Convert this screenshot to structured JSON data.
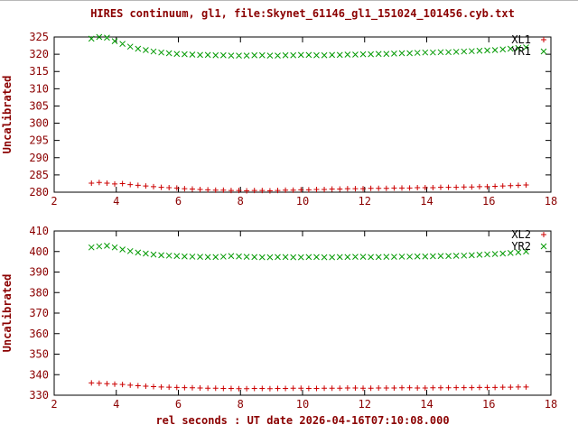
{
  "page": {
    "bg": "#ffffff",
    "text_color": "#8b0000",
    "legend_text_color": "#000000",
    "axis_color": "#000000"
  },
  "chart_data": [
    {
      "type": "scatter",
      "title": "HIRES continuum, gl1, file:Skynet_61146_gl1_151024_101456.cyb.txt",
      "xlabel": "",
      "ylabel": "Uncalibrated",
      "xlim": [
        2,
        18
      ],
      "ylim": [
        280,
        325
      ],
      "xtick": 2,
      "ytick": 5,
      "grid": false,
      "legend_position": "top-right-inside",
      "x": [
        3.2,
        3.45,
        3.7,
        3.95,
        4.2,
        4.45,
        4.7,
        4.95,
        5.2,
        5.45,
        5.7,
        5.95,
        6.2,
        6.45,
        6.7,
        6.95,
        7.2,
        7.45,
        7.7,
        7.95,
        8.2,
        8.45,
        8.7,
        8.95,
        9.2,
        9.45,
        9.7,
        9.95,
        10.2,
        10.45,
        10.7,
        10.95,
        11.2,
        11.45,
        11.7,
        11.95,
        12.2,
        12.45,
        12.7,
        12.95,
        13.2,
        13.45,
        13.7,
        13.95,
        14.2,
        14.45,
        14.7,
        14.95,
        15.2,
        15.45,
        15.7,
        15.95,
        16.2,
        16.45,
        16.7,
        16.95,
        17.2
      ],
      "series": [
        {
          "name": "XL1",
          "marker": "plus",
          "color": "#cc0000",
          "y": [
            282.6,
            282.8,
            282.6,
            282.4,
            282.5,
            282.2,
            282.0,
            281.8,
            281.6,
            281.4,
            281.3,
            281.2,
            281.0,
            280.9,
            280.8,
            280.7,
            280.6,
            280.6,
            280.5,
            280.5,
            280.4,
            280.5,
            280.5,
            280.4,
            280.5,
            280.6,
            280.6,
            280.7,
            280.7,
            280.8,
            280.8,
            280.9,
            280.9,
            281.0,
            281.0,
            281.0,
            281.1,
            281.1,
            281.1,
            281.2,
            281.2,
            281.2,
            281.3,
            281.3,
            281.3,
            281.4,
            281.4,
            281.4,
            281.5,
            281.5,
            281.6,
            281.6,
            281.7,
            281.8,
            281.9,
            282.0,
            282.1
          ]
        },
        {
          "name": "YR1",
          "marker": "cross",
          "color": "#009900",
          "y": [
            324.5,
            325.0,
            324.8,
            323.8,
            323.0,
            322.2,
            321.6,
            321.2,
            320.8,
            320.5,
            320.3,
            320.1,
            320.0,
            319.9,
            319.8,
            319.8,
            319.7,
            319.7,
            319.6,
            319.6,
            319.6,
            319.7,
            319.7,
            319.6,
            319.6,
            319.7,
            319.7,
            319.8,
            319.8,
            319.7,
            319.7,
            319.8,
            319.8,
            319.9,
            319.9,
            320.0,
            320.0,
            320.1,
            320.1,
            320.2,
            320.3,
            320.3,
            320.4,
            320.5,
            320.5,
            320.6,
            320.6,
            320.7,
            320.8,
            320.9,
            321.0,
            321.1,
            321.2,
            321.4,
            321.6,
            321.8,
            322.0
          ]
        }
      ]
    },
    {
      "type": "scatter",
      "title": "",
      "xlabel": "rel seconds : UT date 2026-04-16T07:10:08.000",
      "ylabel": "Uncalibrated",
      "xlim": [
        2,
        18
      ],
      "ylim": [
        330,
        410
      ],
      "xtick": 2,
      "ytick": 10,
      "grid": false,
      "legend_position": "top-right-inside",
      "x": [
        3.2,
        3.45,
        3.7,
        3.95,
        4.2,
        4.45,
        4.7,
        4.95,
        5.2,
        5.45,
        5.7,
        5.95,
        6.2,
        6.45,
        6.7,
        6.95,
        7.2,
        7.45,
        7.7,
        7.95,
        8.2,
        8.45,
        8.7,
        8.95,
        9.2,
        9.45,
        9.7,
        9.95,
        10.2,
        10.45,
        10.7,
        10.95,
        11.2,
        11.45,
        11.7,
        11.95,
        12.2,
        12.45,
        12.7,
        12.95,
        13.2,
        13.45,
        13.7,
        13.95,
        14.2,
        14.45,
        14.7,
        14.95,
        15.2,
        15.45,
        15.7,
        15.95,
        16.2,
        16.45,
        16.7,
        16.95,
        17.2
      ],
      "series": [
        {
          "name": "XL2",
          "marker": "plus",
          "color": "#cc0000",
          "y": [
            336.0,
            335.8,
            335.6,
            335.4,
            335.2,
            334.9,
            334.6,
            334.4,
            334.2,
            334.0,
            333.9,
            333.8,
            333.7,
            333.6,
            333.5,
            333.4,
            333.4,
            333.3,
            333.3,
            333.2,
            333.2,
            333.3,
            333.3,
            333.2,
            333.3,
            333.3,
            333.4,
            333.4,
            333.3,
            333.3,
            333.4,
            333.4,
            333.4,
            333.5,
            333.5,
            333.4,
            333.4,
            333.5,
            333.5,
            333.5,
            333.6,
            333.6,
            333.5,
            333.5,
            333.6,
            333.6,
            333.6,
            333.7,
            333.7,
            333.7,
            333.8,
            333.8,
            333.8,
            333.9,
            333.9,
            334.0,
            334.0
          ]
        },
        {
          "name": "YR2",
          "marker": "cross",
          "color": "#009900",
          "y": [
            402.0,
            402.5,
            402.8,
            402.0,
            401.0,
            400.2,
            399.5,
            399.0,
            398.5,
            398.2,
            398.0,
            397.8,
            397.6,
            397.5,
            397.4,
            397.3,
            397.3,
            397.5,
            397.8,
            397.6,
            397.4,
            397.3,
            397.2,
            397.2,
            397.3,
            397.3,
            397.2,
            397.2,
            397.3,
            397.3,
            397.2,
            397.2,
            397.3,
            397.3,
            397.4,
            397.4,
            397.3,
            397.3,
            397.4,
            397.4,
            397.5,
            397.5,
            397.6,
            397.6,
            397.7,
            397.8,
            397.8,
            397.9,
            398.0,
            398.2,
            398.4,
            398.6,
            398.8,
            399.0,
            399.3,
            399.6,
            400.0
          ]
        }
      ]
    }
  ]
}
